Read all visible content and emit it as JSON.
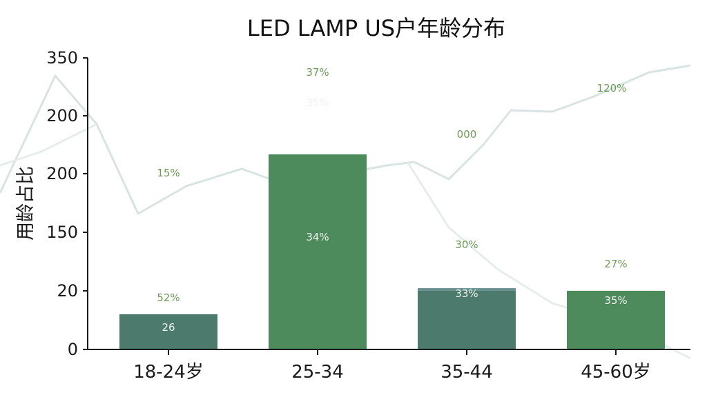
{
  "chart_data": {
    "type": "bar",
    "title": "LED LAMP US户年龄分布",
    "ylabel": "用龄占比",
    "xlabel": "",
    "y_ticks": [
      "0",
      "20",
      "150",
      "200",
      "200",
      "350"
    ],
    "categories": [
      "18-24岁",
      "25-34",
      "35-44",
      "45-60岁"
    ],
    "values": [
      12,
      225,
      26,
      20
    ],
    "stacked_segments": [
      {
        "category": "35-44",
        "lower": 20,
        "upper": 26
      },
      {
        "category": "45-60岁",
        "lower": 20,
        "upper": 20.2
      }
    ],
    "annotations": [
      {
        "category": "18-24岁",
        "inside": "26",
        "above": "52%",
        "high": "15%"
      },
      {
        "category": "25-34",
        "inside": "35%",
        "middle": "34%",
        "above": "37%"
      },
      {
        "category": "35-44",
        "inside": "33%",
        "above": "30%",
        "high": "000"
      },
      {
        "category": "45-60岁",
        "inside": "35%",
        "above": "27%",
        "high": "120%"
      }
    ],
    "grid": false,
    "legend": "none",
    "colors": {
      "bar_dark": "#4c7a6c",
      "bar_green": "#4d8a5c",
      "bar_teal_light": "#6a9091",
      "bar_green_light": "#6b9e6c",
      "label_inside": "#eef3ec",
      "label_outside": "#6c9a57",
      "axis": "#1a1a1a"
    }
  }
}
